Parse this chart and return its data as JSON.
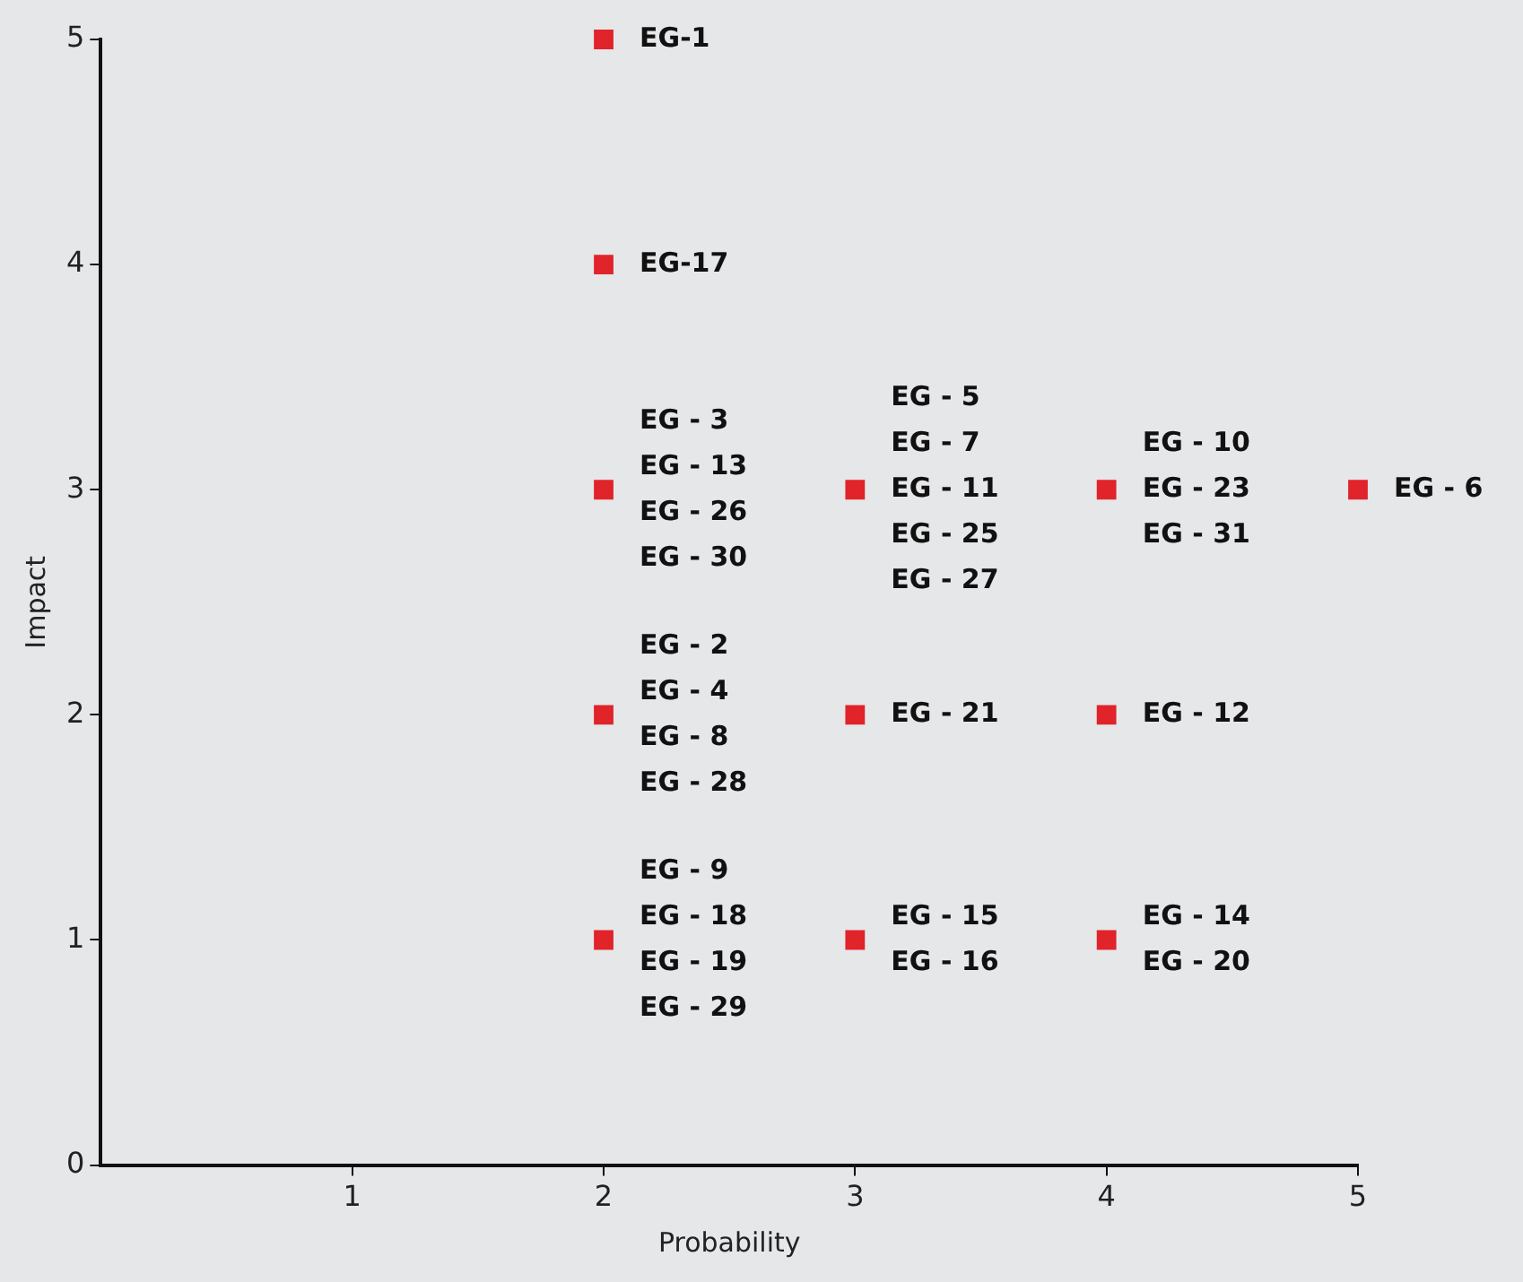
{
  "chart_data": {
    "type": "scatter",
    "xlabel": "Probability",
    "ylabel": "Impact",
    "x": [
      2,
      2,
      2,
      3,
      4,
      5,
      2,
      3,
      4,
      2,
      3,
      4
    ],
    "values": [
      5,
      4,
      3,
      3,
      3,
      3,
      2,
      2,
      2,
      1,
      1,
      1
    ],
    "color": "#e0242a",
    "marker": "square",
    "grid": false,
    "legend": false,
    "xlim": [
      0,
      5
    ],
    "xticks": [
      1,
      2,
      3,
      4,
      5
    ],
    "ylim": [
      0,
      5
    ],
    "yticks": [
      0,
      1,
      2,
      3,
      4,
      5
    ],
    "annotations": [
      {
        "text": "EG-1",
        "x": 2,
        "y": 5
      },
      {
        "text": "EG-17",
        "x": 2,
        "y": 4
      },
      {
        "text": "EG - 3\nEG - 13\nEG - 26\nEG - 30",
        "x": 2,
        "y": 3
      },
      {
        "text": "EG - 5\nEG - 7\nEG - 11\nEG - 25\nEG - 27",
        "x": 3,
        "y": 3
      },
      {
        "text": "EG - 10\nEG - 23\nEG - 31",
        "x": 4,
        "y": 3
      },
      {
        "text": "EG - 6",
        "x": 5,
        "y": 3
      },
      {
        "text": "EG - 2\nEG - 4\nEG - 8\nEG - 28",
        "x": 2,
        "y": 2
      },
      {
        "text": "EG - 21",
        "x": 3,
        "y": 2
      },
      {
        "text": "EG - 12",
        "x": 4,
        "y": 2
      },
      {
        "text": "EG - 9\nEG - 18\nEG - 19\nEG - 29",
        "x": 2,
        "y": 1
      },
      {
        "text": "EG - 15\nEG - 16",
        "x": 3,
        "y": 1
      },
      {
        "text": "EG - 14\nEG - 20",
        "x": 4,
        "y": 1
      }
    ]
  }
}
